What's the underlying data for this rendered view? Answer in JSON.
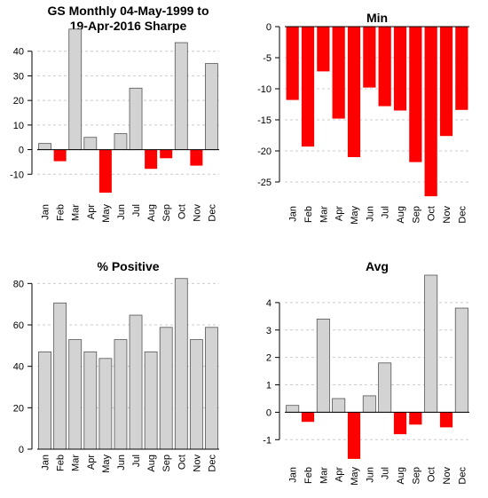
{
  "months": [
    "Jan",
    "Feb",
    "Mar",
    "Apr",
    "May",
    "Jun",
    "Jul",
    "Aug",
    "Sep",
    "Oct",
    "Nov",
    "Dec"
  ],
  "colors": {
    "positive": "#d3d3d3",
    "negative": "#ff0000",
    "border": "#555555",
    "grid": "#cccccc"
  },
  "chart_data": [
    {
      "type": "bar",
      "title": "GS Monthly 04-May-1999 to\n19-Apr-2016 Sharpe",
      "categories": [
        "Jan",
        "Feb",
        "Mar",
        "Apr",
        "May",
        "Jun",
        "Jul",
        "Aug",
        "Sep",
        "Oct",
        "Nov",
        "Dec"
      ],
      "values": [
        2.5,
        -4.7,
        49,
        5,
        -17.5,
        6.5,
        25,
        -7.8,
        -3.5,
        43.5,
        -6.5,
        35
      ],
      "ylim": [
        -20,
        50
      ],
      "yticks": [
        -10,
        0,
        10,
        20,
        30,
        40
      ],
      "grid": true,
      "baseline": 0
    },
    {
      "type": "bar",
      "title": "Min",
      "categories": [
        "Jan",
        "Feb",
        "Mar",
        "Apr",
        "May",
        "Jun",
        "Jul",
        "Aug",
        "Sep",
        "Oct",
        "Nov",
        "Dec"
      ],
      "values": [
        -11.8,
        -19.3,
        -7.2,
        -14.8,
        -21,
        -9.8,
        -12.8,
        -13.5,
        -21.8,
        -27.3,
        -17.6,
        -13.4
      ],
      "ylim": [
        -28,
        0
      ],
      "yticks": [
        0,
        -5,
        -10,
        -15,
        -20,
        -25
      ],
      "grid": true,
      "baseline": 0
    },
    {
      "type": "bar",
      "title": "% Positive",
      "categories": [
        "Jan",
        "Feb",
        "Mar",
        "Apr",
        "May",
        "Jun",
        "Jul",
        "Aug",
        "Sep",
        "Oct",
        "Nov",
        "Dec"
      ],
      "values": [
        47,
        70.6,
        52.9,
        47,
        43.8,
        52.9,
        64.7,
        47,
        58.8,
        82.4,
        52.9,
        58.8
      ],
      "ylim": [
        0,
        84
      ],
      "yticks": [
        0,
        20,
        40,
        60,
        80
      ],
      "grid": true,
      "baseline": 0
    },
    {
      "type": "bar",
      "title": "Avg",
      "categories": [
        "Jan",
        "Feb",
        "Mar",
        "Apr",
        "May",
        "Jun",
        "Jul",
        "Aug",
        "Sep",
        "Oct",
        "Nov",
        "Dec"
      ],
      "values": [
        0.25,
        -0.35,
        3.4,
        0.5,
        -1.7,
        0.6,
        1.8,
        -0.8,
        -0.45,
        5,
        -0.55,
        3.8
      ],
      "ylim": [
        -1.8,
        5
      ],
      "yticks": [
        -1,
        0,
        1,
        2,
        3,
        4
      ],
      "grid": true,
      "baseline": 0
    }
  ]
}
